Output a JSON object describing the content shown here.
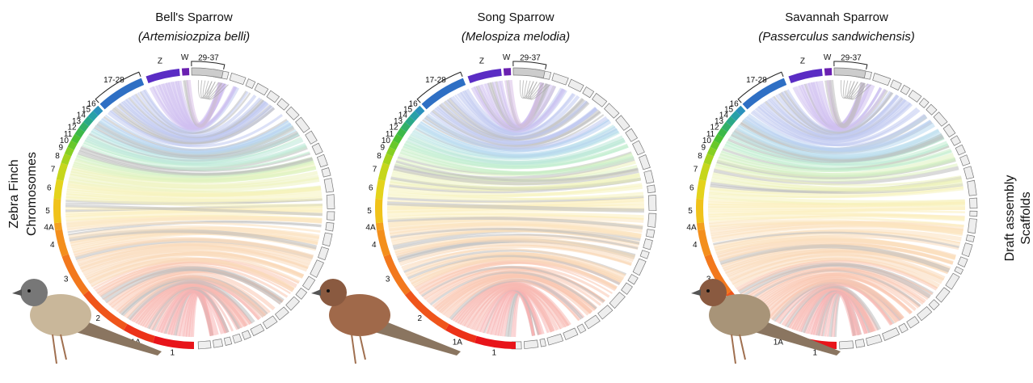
{
  "panels": [
    {
      "title": "Bell's Sparrow",
      "species": "(Artemisiozpiza belli)"
    },
    {
      "title": "Song Sparrow",
      "species": "(Melospiza melodia)"
    },
    {
      "title": "Savannah Sparrow",
      "species": "(Passerculus sandwichensis)"
    }
  ],
  "chromosome_labels": [
    "1",
    "1A",
    "2",
    "3",
    "4",
    "4A",
    "5",
    "6",
    "7",
    "8",
    "9",
    "10",
    "11",
    "12",
    "13",
    "14",
    "15",
    "16",
    "17-28",
    "Z",
    "W",
    "29-37"
  ],
  "left_label": [
    "Zebra Finch",
    "Chromosomes"
  ],
  "right_label": [
    "Draft assembly",
    "Scaffolds"
  ]
}
